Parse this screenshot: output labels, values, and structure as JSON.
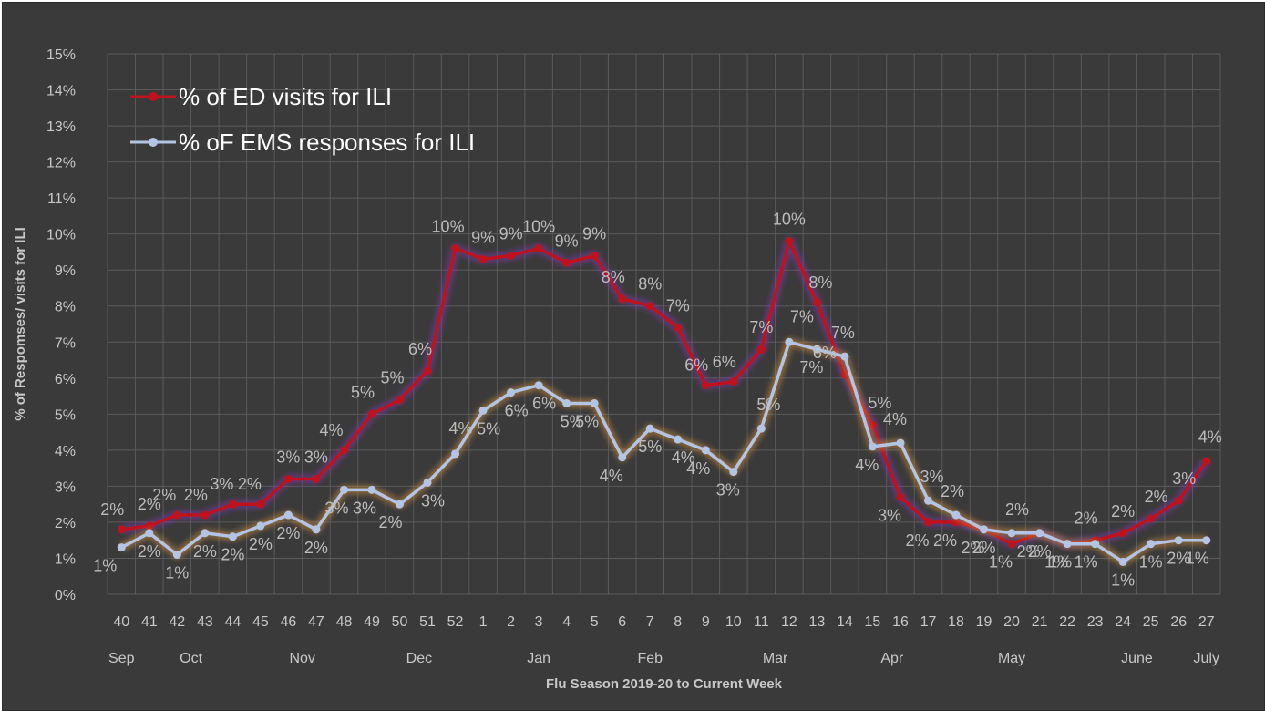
{
  "chart_data": {
    "type": "line",
    "title": "",
    "xlabel": "Flu Season 2019-20 to Current Week",
    "ylabel": "% of Respomses/ visits for ILI",
    "ylim": [
      0,
      15
    ],
    "yticks": [
      "0%",
      "1%",
      "2%",
      "3%",
      "4%",
      "5%",
      "6%",
      "7%",
      "8%",
      "9%",
      "10%",
      "11%",
      "12%",
      "13%",
      "14%",
      "15%"
    ],
    "grid": true,
    "legend_position": "top-left",
    "categories": [
      "40",
      "41",
      "42",
      "43",
      "44",
      "45",
      "46",
      "47",
      "48",
      "49",
      "50",
      "51",
      "52",
      "1",
      "2",
      "3",
      "4",
      "5",
      "6",
      "7",
      "8",
      "9",
      "10",
      "11",
      "12",
      "13",
      "14",
      "15",
      "16",
      "17",
      "18",
      "19",
      "20",
      "21",
      "22",
      "23",
      "24",
      "25",
      "26",
      "27"
    ],
    "months": [
      {
        "label": "Sep",
        "at": 0
      },
      {
        "label": "Oct",
        "at": 2.5
      },
      {
        "label": "Nov",
        "at": 6.5
      },
      {
        "label": "Dec",
        "at": 10.7
      },
      {
        "label": "Jan",
        "at": 15
      },
      {
        "label": "Feb",
        "at": 19
      },
      {
        "label": "Mar",
        "at": 23.5
      },
      {
        "label": "Apr",
        "at": 27.7
      },
      {
        "label": "May",
        "at": 32
      },
      {
        "label": "June",
        "at": 36.5
      },
      {
        "label": "July",
        "at": 39
      }
    ],
    "series": [
      {
        "name": "% of ED visits for ILI",
        "color": "#c0121c",
        "glow": "#7a3aa8",
        "values": [
          1.8,
          1.9,
          2.2,
          2.2,
          2.5,
          2.5,
          3.2,
          3.2,
          4.0,
          5.0,
          5.4,
          6.2,
          9.6,
          9.3,
          9.4,
          9.6,
          9.2,
          9.4,
          8.2,
          8.0,
          7.4,
          5.8,
          5.9,
          6.8,
          9.8,
          8.1,
          6.1,
          4.7,
          2.7,
          2.0,
          2.0,
          1.8,
          1.4,
          1.7,
          1.4,
          1.5,
          1.7,
          2.1,
          2.6,
          3.7
        ],
        "labels": [
          "2%",
          "2%",
          "2%",
          "2%",
          "3%",
          "2%",
          "3%",
          "3%",
          "4%",
          "5%",
          "5%",
          "6%",
          "10%",
          "9%",
          "9%",
          "10%",
          "9%",
          "9%",
          "8%",
          "8%",
          "7%",
          "6%",
          "6%",
          "7%",
          "10%",
          "8%",
          "6%",
          "5%",
          "3%",
          "2%",
          "2%",
          "2%",
          "1%",
          "2%",
          "1%",
          "2%",
          "2%",
          "2%",
          "3%",
          "4%"
        ]
      },
      {
        "name": "% oF EMS responses for ILI",
        "color": "#b4c4e4",
        "glow": "#c88a3a",
        "values": [
          1.3,
          1.7,
          1.1,
          1.7,
          1.6,
          1.9,
          2.2,
          1.8,
          2.9,
          2.9,
          2.5,
          3.1,
          3.9,
          5.1,
          5.6,
          5.8,
          5.3,
          5.3,
          3.8,
          4.6,
          4.3,
          4.0,
          3.4,
          4.6,
          7.0,
          6.8,
          6.6,
          4.1,
          4.2,
          2.6,
          2.2,
          1.8,
          1.7,
          1.7,
          1.4,
          1.4,
          0.9,
          1.4,
          1.5,
          1.5
        ],
        "labels": [
          "1%",
          "2%",
          "1%",
          "2%",
          "2%",
          "2%",
          "2%",
          "2%",
          "3%",
          "3%",
          "2%",
          "3%",
          "4%",
          "5%",
          "6%",
          "6%",
          "5%",
          "5%",
          "4%",
          "5%",
          "4%",
          "4%",
          "3%",
          "5%",
          "7%",
          "7%",
          "7%",
          "4%",
          "4%",
          "3%",
          "2%",
          "2%",
          "2%",
          "2%",
          "1%",
          "1%",
          "1%",
          "1%",
          "2%",
          "1%"
        ]
      }
    ]
  }
}
